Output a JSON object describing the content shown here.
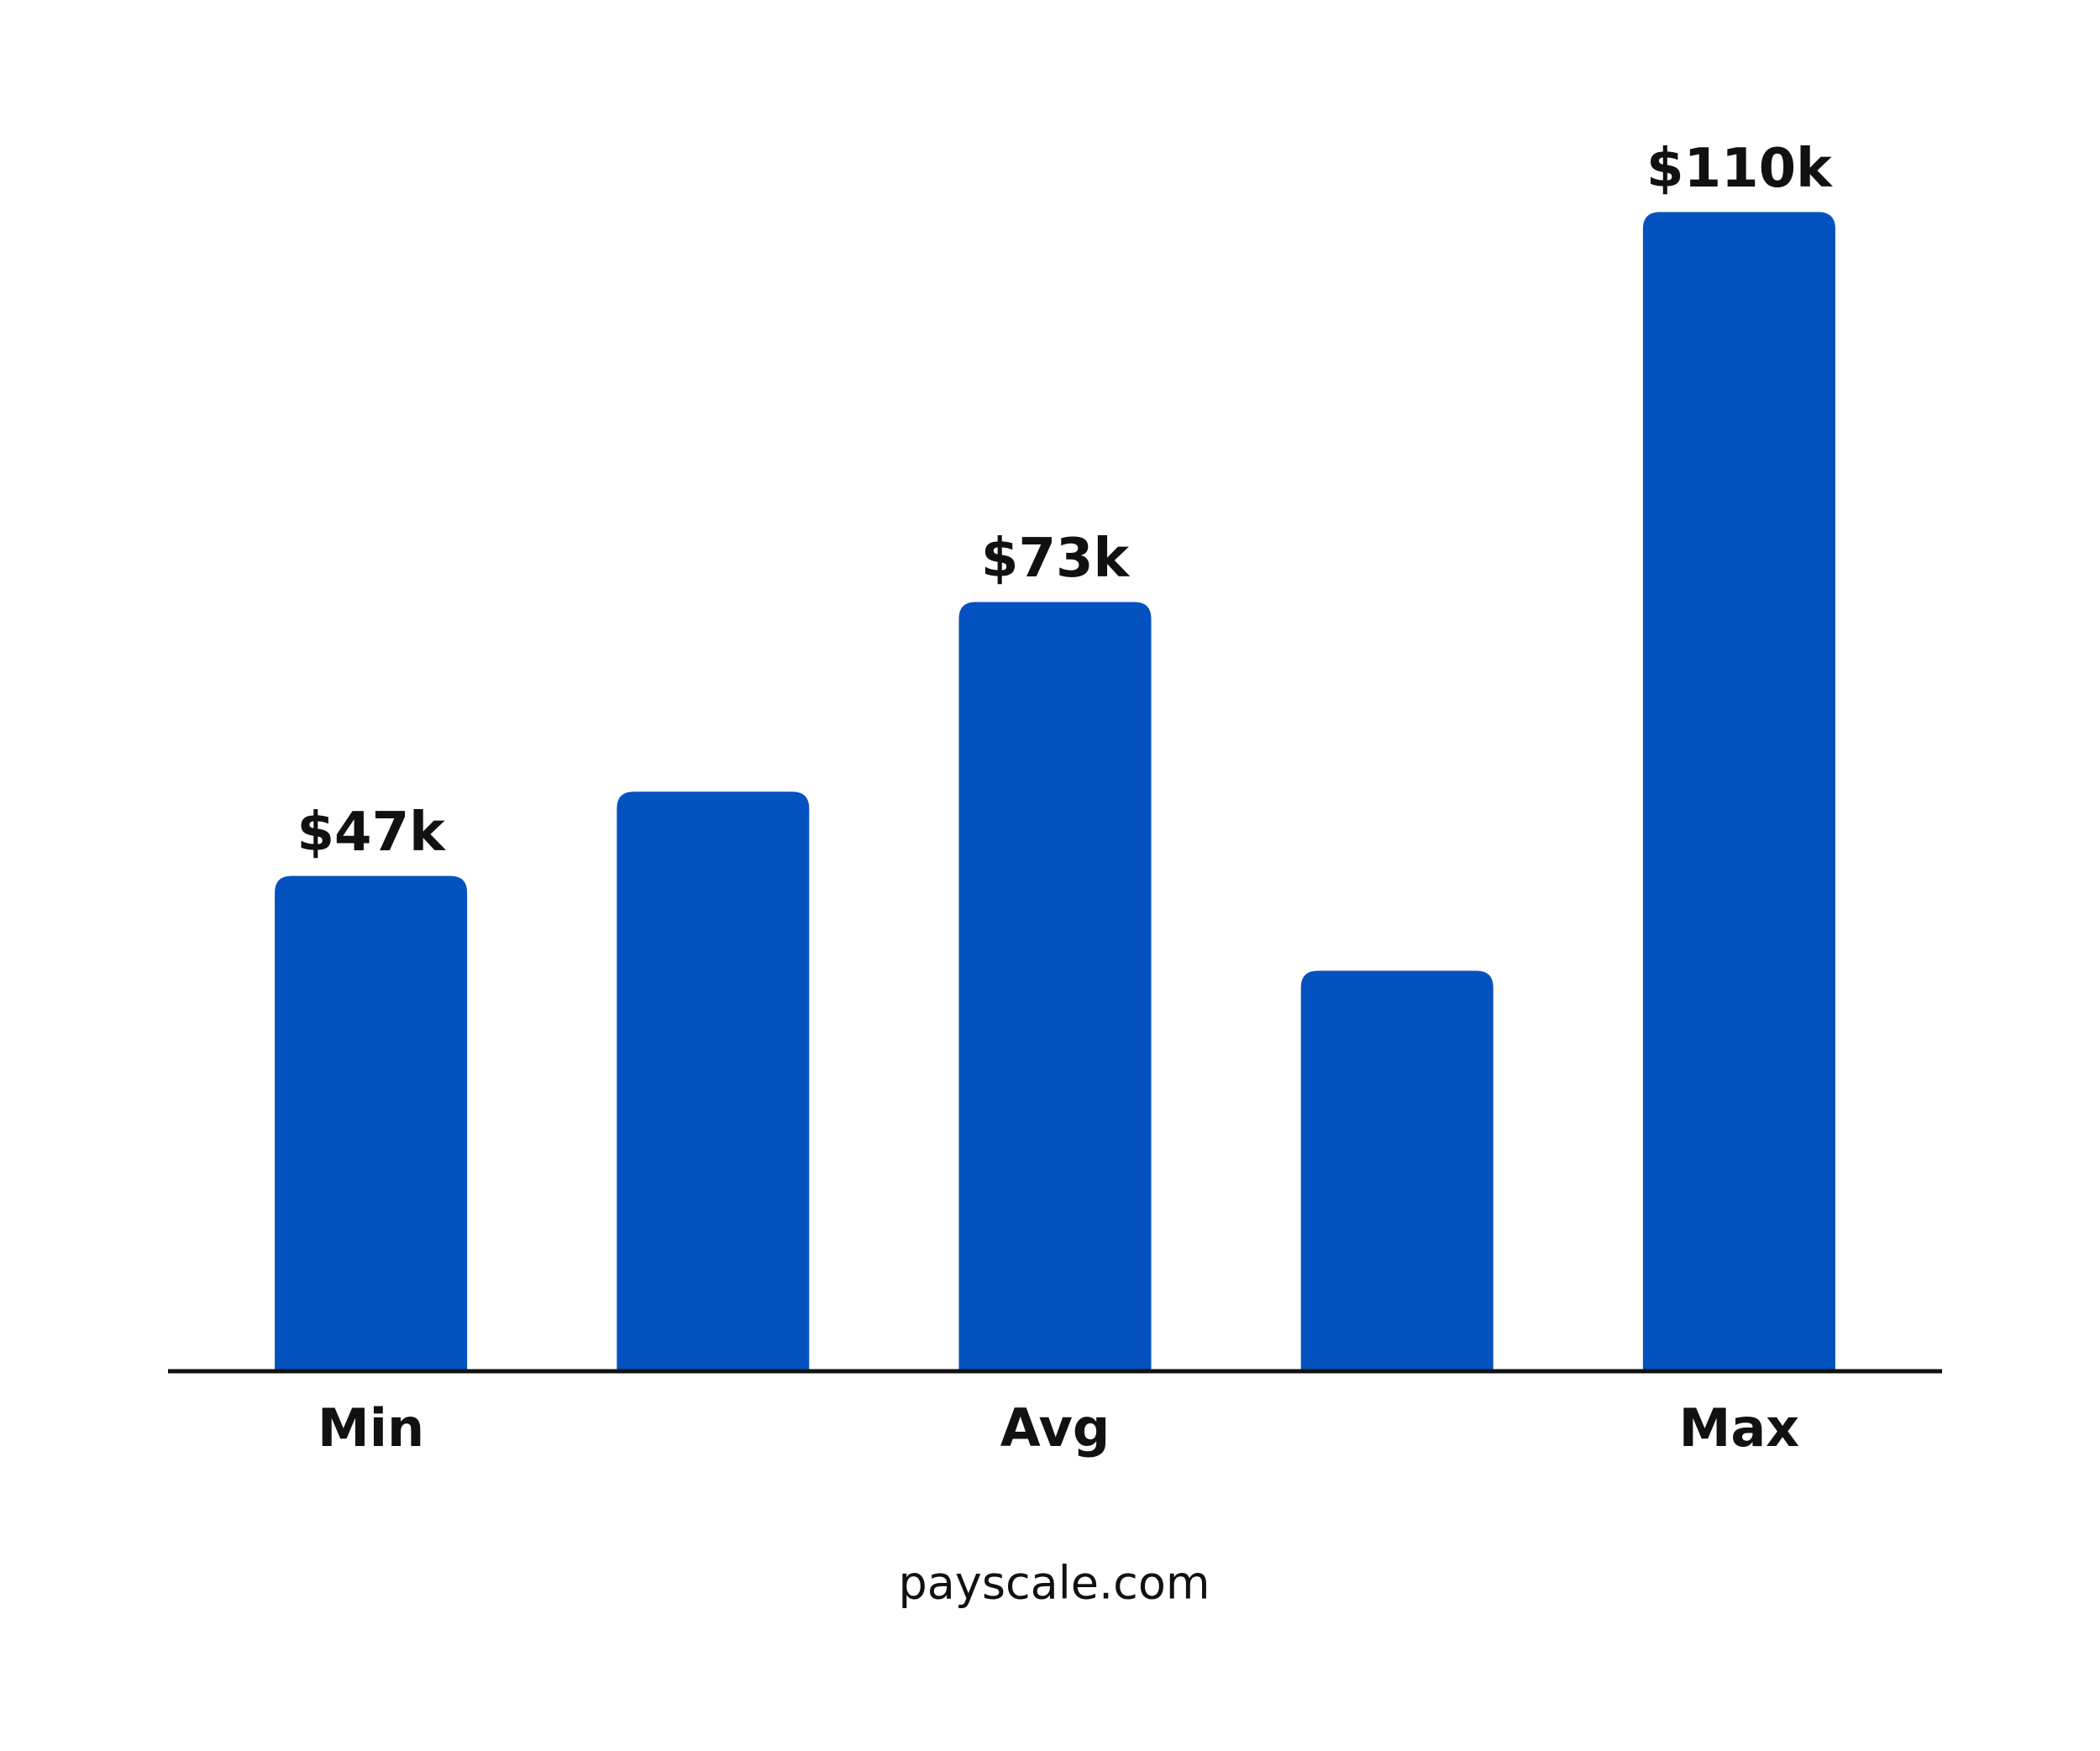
{
  "chart_data": {
    "type": "bar",
    "categories": [
      "Min",
      null,
      "Avg",
      null,
      "Max"
    ],
    "values": [
      47000,
      55000,
      73000,
      38000,
      110000
    ],
    "value_labels": [
      "$47k",
      null,
      "$73k",
      null,
      "$110k"
    ],
    "color": "#0452bf",
    "ylim": [
      0,
      120000
    ],
    "footer": "payscale.com"
  }
}
